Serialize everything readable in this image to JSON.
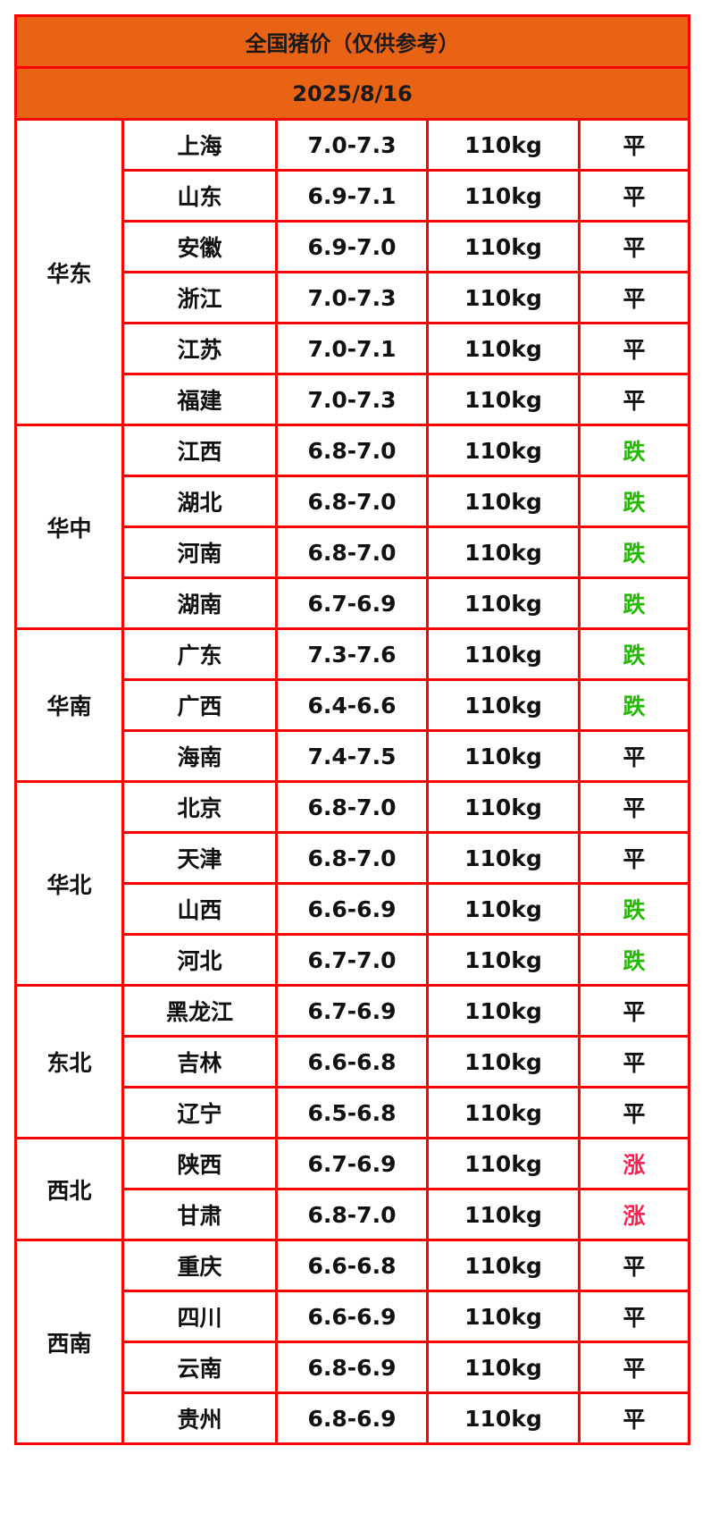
{
  "title": "全国猪价（仅供参考）",
  "date": "2025/8/16",
  "colors": {
    "header_bg": "#e96314",
    "border": "#ff0000",
    "down": "#22bb00",
    "up": "#ff2050"
  },
  "regions": [
    {
      "name": "华东",
      "rows": [
        {
          "province": "上海",
          "price": "7.0-7.3",
          "weight": "110kg",
          "trend": "平"
        },
        {
          "province": "山东",
          "price": "6.9-7.1",
          "weight": "110kg",
          "trend": "平"
        },
        {
          "province": "安徽",
          "price": "6.9-7.0",
          "weight": "110kg",
          "trend": "平"
        },
        {
          "province": "浙江",
          "price": "7.0-7.3",
          "weight": "110kg",
          "trend": "平"
        },
        {
          "province": "江苏",
          "price": "7.0-7.1",
          "weight": "110kg",
          "trend": "平"
        },
        {
          "province": "福建",
          "price": "7.0-7.3",
          "weight": "110kg",
          "trend": "平"
        }
      ]
    },
    {
      "name": "华中",
      "rows": [
        {
          "province": "江西",
          "price": "6.8-7.0",
          "weight": "110kg",
          "trend": "跌"
        },
        {
          "province": "湖北",
          "price": "6.8-7.0",
          "weight": "110kg",
          "trend": "跌"
        },
        {
          "province": "河南",
          "price": "6.8-7.0",
          "weight": "110kg",
          "trend": "跌"
        },
        {
          "province": "湖南",
          "price": "6.7-6.9",
          "weight": "110kg",
          "trend": "跌"
        }
      ]
    },
    {
      "name": "华南",
      "rows": [
        {
          "province": "广东",
          "price": "7.3-7.6",
          "weight": "110kg",
          "trend": "跌"
        },
        {
          "province": "广西",
          "price": "6.4-6.6",
          "weight": "110kg",
          "trend": "跌"
        },
        {
          "province": "海南",
          "price": "7.4-7.5",
          "weight": "110kg",
          "trend": "平"
        }
      ]
    },
    {
      "name": "华北",
      "rows": [
        {
          "province": "北京",
          "price": "6.8-7.0",
          "weight": "110kg",
          "trend": "平"
        },
        {
          "province": "天津",
          "price": "6.8-7.0",
          "weight": "110kg",
          "trend": "平"
        },
        {
          "province": "山西",
          "price": "6.6-6.9",
          "weight": "110kg",
          "trend": "跌"
        },
        {
          "province": "河北",
          "price": "6.7-7.0",
          "weight": "110kg",
          "trend": "跌"
        }
      ]
    },
    {
      "name": "东北",
      "rows": [
        {
          "province": "黑龙江",
          "price": "6.7-6.9",
          "weight": "110kg",
          "trend": "平"
        },
        {
          "province": "吉林",
          "price": "6.6-6.8",
          "weight": "110kg",
          "trend": "平"
        },
        {
          "province": "辽宁",
          "price": "6.5-6.8",
          "weight": "110kg",
          "trend": "平"
        }
      ]
    },
    {
      "name": "西北",
      "rows": [
        {
          "province": "陕西",
          "price": "6.7-6.9",
          "weight": "110kg",
          "trend": "涨"
        },
        {
          "province": "甘肃",
          "price": "6.8-7.0",
          "weight": "110kg",
          "trend": "涨"
        }
      ]
    },
    {
      "name": "西南",
      "rows": [
        {
          "province": "重庆",
          "price": "6.6-6.8",
          "weight": "110kg",
          "trend": "平"
        },
        {
          "province": "四川",
          "price": "6.6-6.9",
          "weight": "110kg",
          "trend": "平"
        },
        {
          "province": "云南",
          "price": "6.8-6.9",
          "weight": "110kg",
          "trend": "平"
        },
        {
          "province": "贵州",
          "price": "6.8-6.9",
          "weight": "110kg",
          "trend": "平"
        }
      ]
    }
  ]
}
